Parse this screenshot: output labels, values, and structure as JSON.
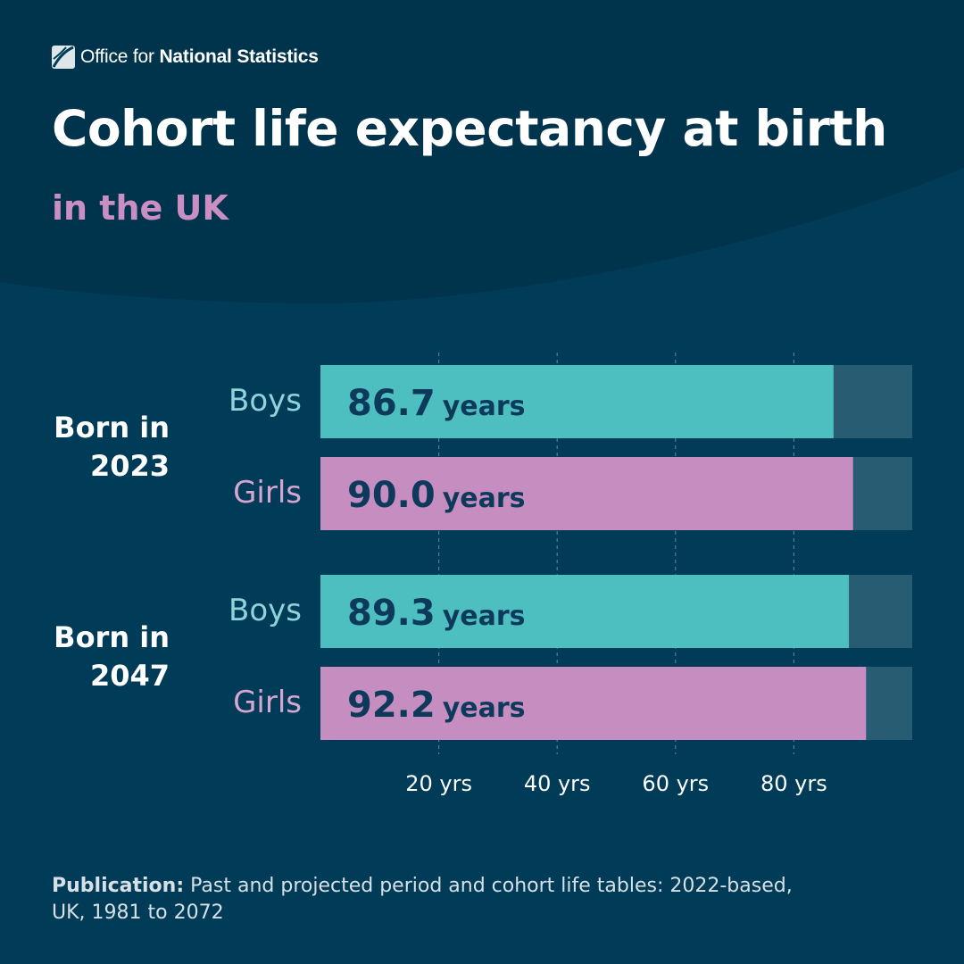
{
  "logo": {
    "light": "Office for",
    "bold": "National Statistics",
    "icon": "ons-logo-icon"
  },
  "title": "Cohort life expectancy at birth",
  "subtitle": "in the UK",
  "footer": {
    "label": "Publication:",
    "line1": "Past and projected period and cohort life tables: 2022-based,",
    "line2": "UK, 1981 to 2072"
  },
  "colors": {
    "background": "#003c57",
    "top_band": "#00334c",
    "boys": "#4dbfc1",
    "girls": "#c68dc0",
    "track": "#275c73"
  },
  "chart_data": {
    "type": "bar",
    "orientation": "horizontal",
    "title": "Cohort life expectancy at birth",
    "subtitle": "in the UK",
    "unit": "years",
    "xlim": [
      0,
      100
    ],
    "xticks": [
      20,
      40,
      60,
      80
    ],
    "xtick_labels": [
      "20 yrs",
      "40 yrs",
      "60 yrs",
      "80 yrs"
    ],
    "groups": [
      {
        "label_line1": "Born in",
        "label_line2": "2023",
        "bars": [
          {
            "category": "Boys",
            "value": 86.7,
            "value_label": "86.7"
          },
          {
            "category": "Girls",
            "value": 90.0,
            "value_label": "90.0"
          }
        ]
      },
      {
        "label_line1": "Born in",
        "label_line2": "2047",
        "bars": [
          {
            "category": "Boys",
            "value": 89.3,
            "value_label": "89.3"
          },
          {
            "category": "Girls",
            "value": 92.2,
            "value_label": "92.2"
          }
        ]
      }
    ]
  }
}
